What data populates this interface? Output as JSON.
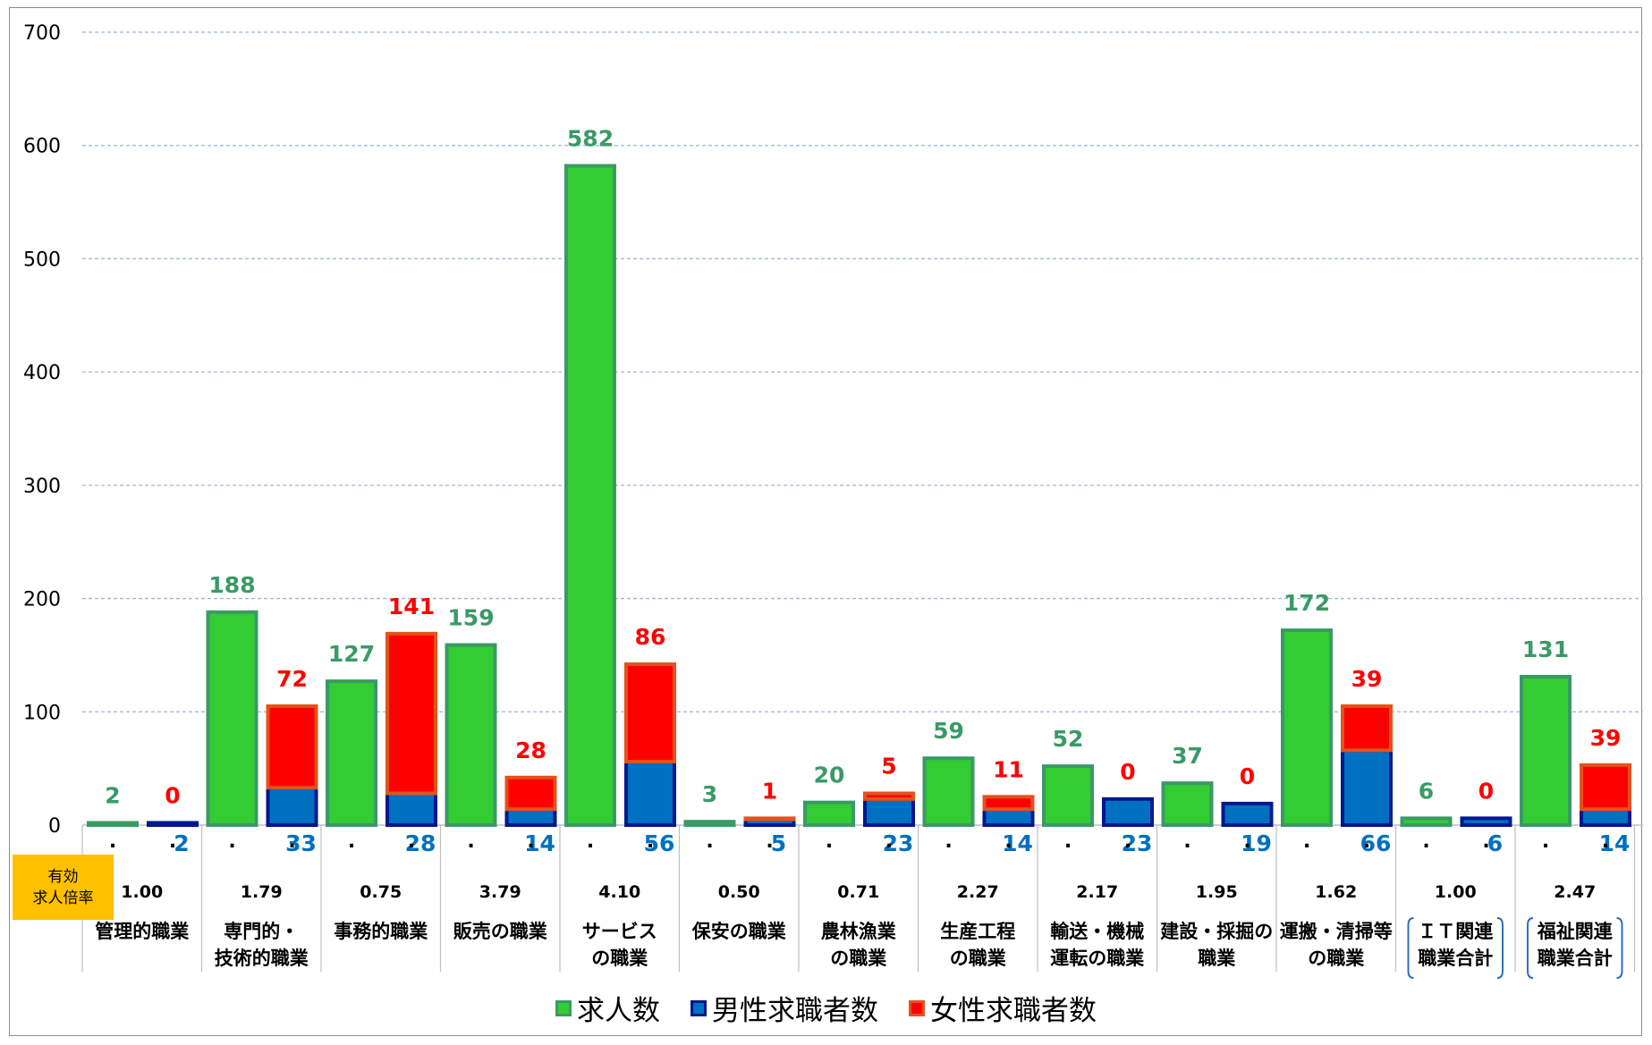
{
  "colors": {
    "openings_fill": "#33cc33",
    "openings_stroke": "#3a9a66",
    "openings_label": "#3a9a66",
    "male_fill": "#0070c0",
    "male_stroke": "#00178f",
    "male_label": "#0070c0",
    "female_fill": "#ff0000",
    "female_stroke": "#e2531b",
    "female_label": "#ff0000",
    "gridline": "#9fb5d8"
  },
  "badge": {
    "line1": "有効",
    "line2": "求人倍率"
  },
  "legend": [
    {
      "label": "求人数",
      "icon": "green-square-icon"
    },
    {
      "label": "男性求職者数",
      "icon": "blue-square-icon"
    },
    {
      "label": "女性求職者数",
      "icon": "red-square-icon"
    }
  ],
  "chart_data": {
    "type": "bar",
    "ylim": [
      0,
      700
    ],
    "yticks": [
      0,
      100,
      200,
      300,
      400,
      500,
      600,
      700
    ],
    "grid": true,
    "legend_position": "bottom",
    "categories": [
      {
        "lines": [
          "管理的職業"
        ],
        "bracket": false
      },
      {
        "lines": [
          "専門的・",
          "技術的職業"
        ],
        "bracket": false
      },
      {
        "lines": [
          "事務的職業"
        ],
        "bracket": false
      },
      {
        "lines": [
          "販売の職業"
        ],
        "bracket": false
      },
      {
        "lines": [
          "サービス",
          "の職業"
        ],
        "bracket": false
      },
      {
        "lines": [
          "保安の職業"
        ],
        "bracket": false
      },
      {
        "lines": [
          "農林漁業",
          "の職業"
        ],
        "bracket": false
      },
      {
        "lines": [
          "生産工程",
          "の職業"
        ],
        "bracket": false
      },
      {
        "lines": [
          "輸送・機械",
          "運転の職業"
        ],
        "bracket": false
      },
      {
        "lines": [
          "建設・採掘の",
          "職業"
        ],
        "bracket": false
      },
      {
        "lines": [
          "運搬・清掃等",
          "の職業"
        ],
        "bracket": false
      },
      {
        "lines": [
          "ＩＴ関連",
          "職業合計"
        ],
        "bracket": true
      },
      {
        "lines": [
          "福祉関連",
          "職業合計"
        ],
        "bracket": true
      }
    ],
    "job_openings": [
      2,
      188,
      127,
      159,
      582,
      3,
      20,
      59,
      52,
      37,
      172,
      6,
      131
    ],
    "male_seekers": [
      2,
      33,
      28,
      14,
      56,
      5,
      23,
      14,
      23,
      19,
      66,
      6,
      14
    ],
    "female_seekers": [
      0,
      72,
      141,
      28,
      86,
      1,
      5,
      11,
      0,
      0,
      39,
      0,
      39
    ],
    "ratio": [
      "1.00",
      "1.79",
      "0.75",
      "3.79",
      "4.10",
      "0.50",
      "0.71",
      "2.27",
      "2.17",
      "1.95",
      "1.62",
      "1.00",
      "2.47"
    ],
    "series": [
      {
        "name": "求人数",
        "values": [
          2,
          188,
          127,
          159,
          582,
          3,
          20,
          59,
          52,
          37,
          172,
          6,
          131
        ]
      },
      {
        "name": "男性求職者数",
        "values": [
          2,
          33,
          28,
          14,
          56,
          5,
          23,
          14,
          23,
          19,
          66,
          6,
          14
        ]
      },
      {
        "name": "女性求職者数",
        "values": [
          0,
          72,
          141,
          28,
          86,
          1,
          5,
          11,
          0,
          0,
          39,
          0,
          39
        ]
      }
    ]
  }
}
